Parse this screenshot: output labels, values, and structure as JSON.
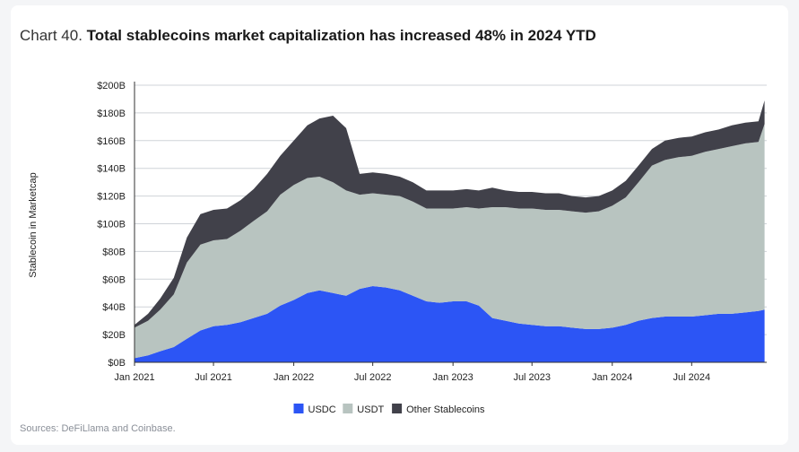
{
  "chart_data": {
    "type": "area",
    "stacked": true,
    "title_prefix": "Chart 40.",
    "title": "Total stablecoins market capitalization has increased 48% in 2024 YTD",
    "xlabel": "",
    "ylabel": "Stablecoin in Marketcap",
    "source": "Sources: DeFiLlama and Coinbase.",
    "ylim": [
      0,
      200
    ],
    "y_ticks": [
      {
        "value": 0,
        "label": "$0B"
      },
      {
        "value": 20,
        "label": "$20B"
      },
      {
        "value": 40,
        "label": "$40B"
      },
      {
        "value": 60,
        "label": "$60B"
      },
      {
        "value": 80,
        "label": "$80B"
      },
      {
        "value": 100,
        "label": "$100B"
      },
      {
        "value": 120,
        "label": "$120B"
      },
      {
        "value": 140,
        "label": "$140B"
      },
      {
        "value": 160,
        "label": "$160B"
      },
      {
        "value": 180,
        "label": "$180B"
      },
      {
        "value": 200,
        "label": "$200B"
      }
    ],
    "xlim": [
      "2021-01-01",
      "2024-12-20"
    ],
    "x_ticks": [
      {
        "date": "2021-01-01",
        "label": "Jan 2021"
      },
      {
        "date": "2021-07-01",
        "label": "Jul 2021"
      },
      {
        "date": "2022-01-01",
        "label": "Jan 2022"
      },
      {
        "date": "2022-07-01",
        "label": "Jul 2022"
      },
      {
        "date": "2023-01-01",
        "label": "Jan 2023"
      },
      {
        "date": "2023-07-01",
        "label": "Jul 2023"
      },
      {
        "date": "2024-01-01",
        "label": "Jan 2024"
      },
      {
        "date": "2024-07-01",
        "label": "Jul 2024"
      }
    ],
    "grid": "horizontal",
    "legend_position": "bottom",
    "x": [
      "2021-01-01",
      "2021-02-01",
      "2021-03-01",
      "2021-04-01",
      "2021-05-01",
      "2021-06-01",
      "2021-07-01",
      "2021-08-01",
      "2021-09-01",
      "2021-10-01",
      "2021-11-01",
      "2021-12-01",
      "2022-01-01",
      "2022-02-01",
      "2022-03-01",
      "2022-04-01",
      "2022-05-01",
      "2022-06-01",
      "2022-07-01",
      "2022-08-01",
      "2022-09-01",
      "2022-10-01",
      "2022-11-01",
      "2022-12-01",
      "2023-01-01",
      "2023-02-01",
      "2023-03-01",
      "2023-04-01",
      "2023-05-01",
      "2023-06-01",
      "2023-07-01",
      "2023-08-01",
      "2023-09-01",
      "2023-10-01",
      "2023-11-01",
      "2023-12-01",
      "2024-01-01",
      "2024-02-01",
      "2024-03-01",
      "2024-04-01",
      "2024-05-01",
      "2024-06-01",
      "2024-07-01",
      "2024-08-01",
      "2024-09-01",
      "2024-10-01",
      "2024-11-01",
      "2024-12-01",
      "2024-12-15"
    ],
    "series": [
      {
        "name": "USDC",
        "color": "#2c55f5",
        "values": [
          3,
          5,
          8,
          11,
          17,
          23,
          26,
          27,
          29,
          32,
          35,
          41,
          45,
          50,
          52,
          50,
          48,
          53,
          55,
          54,
          52,
          48,
          44,
          43,
          44,
          44,
          41,
          32,
          30,
          28,
          27,
          26,
          26,
          25,
          24,
          24,
          25,
          27,
          30,
          32,
          33,
          33,
          33,
          34,
          35,
          35,
          36,
          37,
          38
        ]
      },
      {
        "name": "USDT",
        "color": "#b8c4c0",
        "values": [
          22,
          25,
          30,
          38,
          55,
          62,
          62,
          62,
          66,
          70,
          74,
          80,
          83,
          83,
          82,
          80,
          76,
          68,
          67,
          67,
          68,
          68,
          67,
          68,
          67,
          68,
          70,
          80,
          82,
          83,
          84,
          84,
          84,
          84,
          84,
          85,
          88,
          92,
          100,
          110,
          113,
          115,
          116,
          118,
          119,
          121,
          122,
          122,
          134
        ]
      },
      {
        "name": "Other Stablecoins",
        "color": "#41414a",
        "values": [
          2,
          5,
          8,
          12,
          18,
          22,
          22,
          22,
          22,
          23,
          27,
          28,
          32,
          38,
          42,
          48,
          45,
          15,
          15,
          15,
          14,
          14,
          13,
          13,
          13,
          13,
          13,
          14,
          12,
          12,
          12,
          12,
          12,
          11,
          11,
          11,
          11,
          12,
          12,
          12,
          14,
          14,
          14,
          14,
          14,
          15,
          15,
          15,
          17
        ]
      }
    ]
  }
}
